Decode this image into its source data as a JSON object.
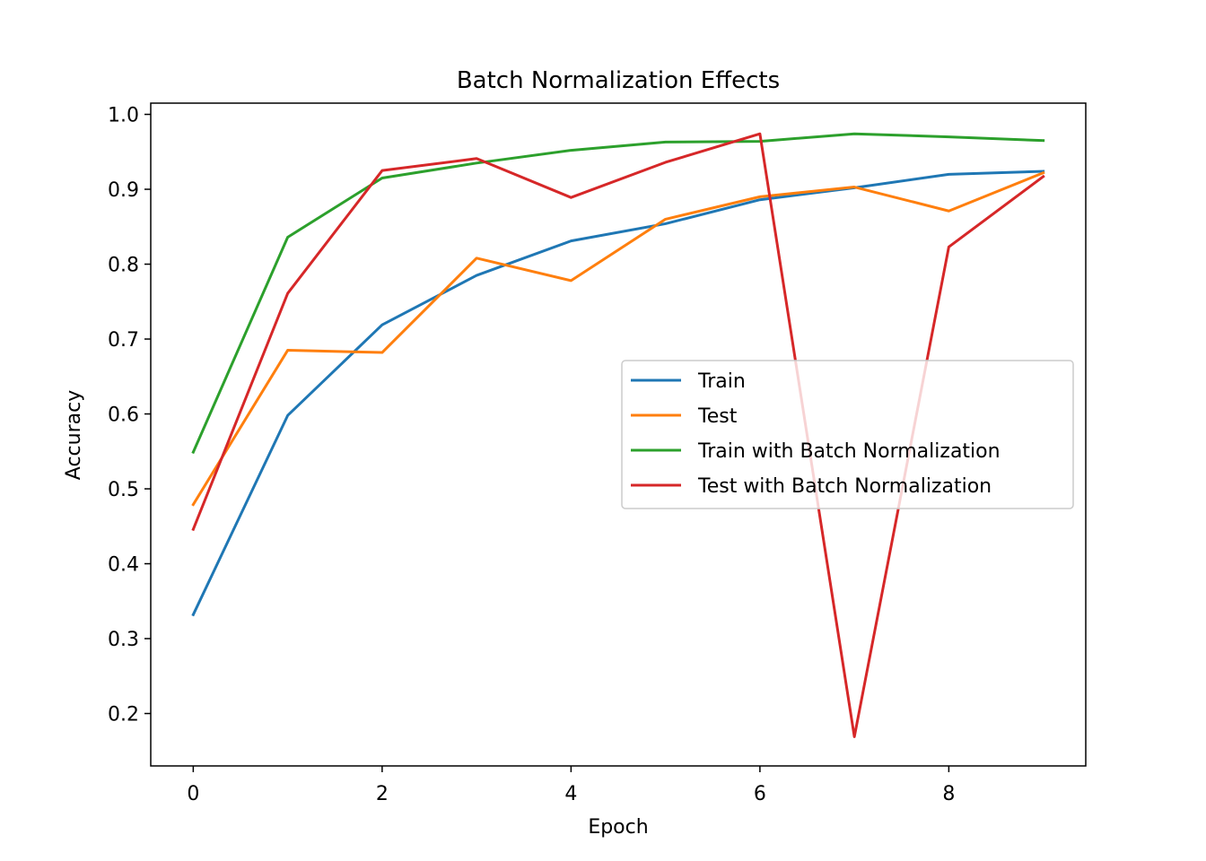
{
  "chart_data": {
    "type": "line",
    "title": "Batch Normalization Effects",
    "xlabel": "Epoch",
    "ylabel": "Accuracy",
    "x": [
      0,
      1,
      2,
      3,
      4,
      5,
      6,
      7,
      8,
      9
    ],
    "xlim": [
      -0.45,
      9.45
    ],
    "ylim": [
      0.13,
      1.015
    ],
    "xticks": [
      0,
      2,
      4,
      6,
      8
    ],
    "xtick_labels": [
      "0",
      "2",
      "4",
      "6",
      "8"
    ],
    "yticks": [
      0.2,
      0.3,
      0.4,
      0.5,
      0.6,
      0.7,
      0.8,
      0.9,
      1.0
    ],
    "ytick_labels": [
      "0.2",
      "0.3",
      "0.4",
      "0.5",
      "0.6",
      "0.7",
      "0.8",
      "0.9",
      "1.0"
    ],
    "grid": false,
    "legend_position": "center-right",
    "series": [
      {
        "name": "Train",
        "color": "#1f77b4",
        "values": [
          0.332,
          0.598,
          0.719,
          0.785,
          0.831,
          0.854,
          0.886,
          0.902,
          0.92,
          0.924
        ]
      },
      {
        "name": "Test",
        "color": "#ff7f0e",
        "values": [
          0.479,
          0.685,
          0.682,
          0.808,
          0.778,
          0.86,
          0.89,
          0.903,
          0.871,
          0.922
        ]
      },
      {
        "name": "Train with Batch Normalization",
        "color": "#2ca02c",
        "values": [
          0.549,
          0.836,
          0.915,
          0.935,
          0.952,
          0.963,
          0.964,
          0.974,
          0.97,
          0.965
        ]
      },
      {
        "name": "Test with Batch Normalization",
        "color": "#d62728",
        "values": [
          0.446,
          0.761,
          0.925,
          0.941,
          0.889,
          0.936,
          0.974,
          0.169,
          0.823,
          0.917
        ]
      }
    ]
  }
}
